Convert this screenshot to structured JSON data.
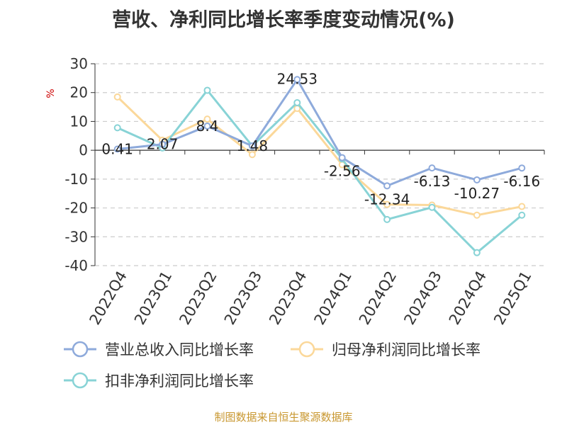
{
  "chart_data": {
    "type": "line",
    "title": "营收、净利同比增长率季度变动情况(%)",
    "ylabel": "%",
    "ylim": [
      -40,
      30
    ],
    "yticks": [
      30,
      20,
      10,
      0,
      -10,
      -20,
      -30,
      -40
    ],
    "categories": [
      "2022Q4",
      "2023Q1",
      "2023Q2",
      "2023Q3",
      "2023Q4",
      "2024Q1",
      "2024Q2",
      "2024Q3",
      "2024Q4",
      "2025Q1"
    ],
    "grid": true,
    "legend_position": "bottom",
    "series": [
      {
        "name": "营业总收入同比增长率",
        "color": "#8eaadb",
        "values": [
          0.41,
          2.07,
          8.4,
          1.48,
          24.53,
          -2.56,
          -12.34,
          -6.13,
          -10.27,
          -6.16
        ],
        "labels": [
          "0.41",
          "2.07",
          "8.4",
          "1.48",
          "24.53",
          "-2.56",
          "-12.34",
          "-6.13",
          "-10.27",
          "-6.16"
        ]
      },
      {
        "name": "归母净利润同比增长率",
        "color": "#fbd89a",
        "values": [
          18.5,
          3.5,
          10.8,
          -1.5,
          14.5,
          -5.0,
          -18.8,
          -19.0,
          -22.5,
          -19.5
        ]
      },
      {
        "name": "扣非净利润同比增长率",
        "color": "#88d3d6",
        "values": [
          7.8,
          0.8,
          20.8,
          1.5,
          16.5,
          -3.0,
          -24.0,
          -19.8,
          -35.5,
          -22.5
        ]
      }
    ]
  },
  "source": "制图数据来自恒生聚源数据库"
}
